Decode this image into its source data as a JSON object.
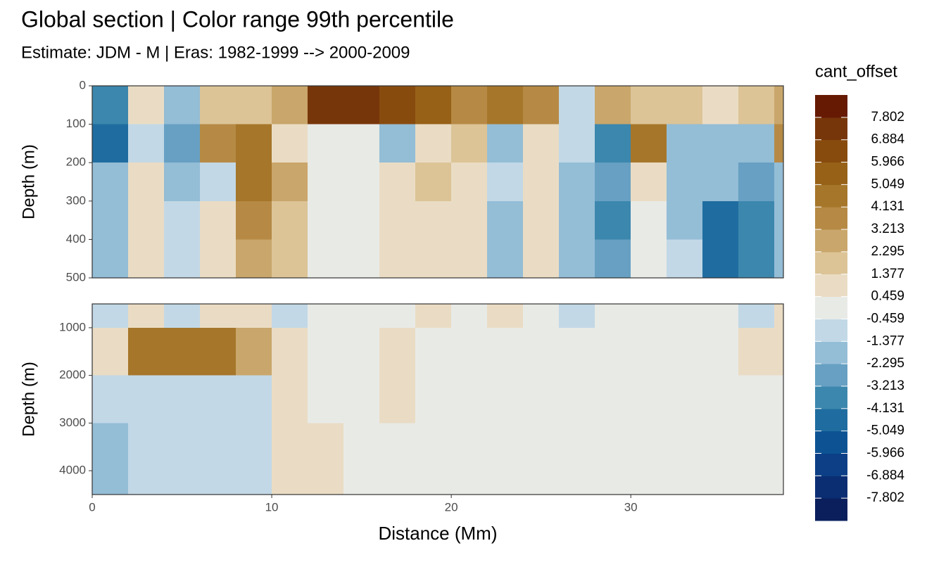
{
  "chart_data": {
    "type": "contour",
    "title": "Global section | Color range 99th percentile",
    "subtitle": "Estimate: JDM - M | Eras: 1982-1999 --> 2000-2009",
    "xlabel": "Distance (Mm)",
    "xlim": [
      0,
      38.5
    ],
    "xticks": [
      0,
      10,
      20,
      30
    ],
    "xbins": [
      0,
      2,
      4,
      6,
      8,
      10,
      12,
      14,
      16,
      18,
      20,
      22,
      24,
      26,
      28,
      30,
      32,
      34,
      36,
      38,
      38.5
    ],
    "y_reversed": true,
    "grid": true,
    "panels": [
      {
        "ylabel": "Depth (m)",
        "ylim": [
          0,
          500
        ],
        "yticks": [
          0,
          100,
          200,
          300,
          400,
          500
        ],
        "ybins": [
          0,
          100,
          200,
          300,
          400,
          500
        ],
        "values": [
          [
            -4,
            0.9,
            -1.5,
            1.8,
            1.8,
            2.5,
            7.5,
            7.5,
            6.5,
            5.5,
            4,
            4.5,
            3.5,
            -1,
            3,
            2,
            1.5,
            0.9,
            2,
            3
          ],
          [
            -5,
            -0.8,
            -2.5,
            3.5,
            5,
            1,
            0,
            0,
            -1.5,
            1,
            2,
            -1.5,
            1,
            -1,
            -3.5,
            5,
            -2,
            -1.5,
            -2,
            4
          ],
          [
            -1.5,
            0.5,
            -2,
            -1,
            5,
            2.5,
            0,
            0,
            0.8,
            1.5,
            1,
            -1,
            0.8,
            -1.5,
            -3,
            0.8,
            -1.5,
            -2,
            -3,
            -1.5
          ],
          [
            -1.5,
            0.6,
            -1,
            0.6,
            3.5,
            2,
            0,
            0,
            0.6,
            1,
            0.8,
            -1.5,
            0.8,
            -1.5,
            -4,
            0,
            -1.5,
            -5,
            -4,
            -1.5
          ],
          [
            -1.5,
            0.5,
            -1,
            0.6,
            3,
            1.5,
            0,
            0,
            0.5,
            0.8,
            0.6,
            -2,
            0.6,
            -2,
            -2.5,
            0,
            -1,
            -5,
            -4,
            -1.5
          ]
        ]
      },
      {
        "ylabel": "Depth (m)",
        "ylim": [
          500,
          4500
        ],
        "yticks": [
          1000,
          2000,
          3000,
          4000
        ],
        "ybins": [
          500,
          1000,
          2000,
          3000,
          4500
        ],
        "values": [
          [
            -0.6,
            0.6,
            -0.6,
            0.6,
            0.6,
            -1,
            0,
            0,
            0,
            0.6,
            0,
            0.6,
            0,
            -1,
            0,
            0,
            0,
            0,
            -0.6,
            0.6
          ],
          [
            0.6,
            5,
            5,
            5,
            3,
            0.6,
            0,
            0,
            0.6,
            0,
            0,
            0,
            0,
            0,
            0,
            0,
            0,
            0,
            0.6,
            0.6
          ],
          [
            -0.6,
            -0.6,
            -0.6,
            -0.6,
            -0.6,
            0.6,
            0,
            0,
            0.6,
            0,
            0,
            0,
            0,
            0,
            0,
            0,
            0,
            0,
            0,
            0
          ],
          [
            -2,
            -0.6,
            -0.6,
            -0.6,
            -0.6,
            0.6,
            0.6,
            0,
            0,
            0,
            0,
            0,
            0,
            0,
            0,
            0,
            0,
            0,
            0,
            0
          ]
        ]
      }
    ],
    "legend": {
      "title": "cant_offset",
      "breaks": [
        -7.802,
        -6.884,
        -5.966,
        -5.049,
        -4.131,
        -3.213,
        -2.295,
        -1.377,
        -0.459,
        0.459,
        1.377,
        2.295,
        3.213,
        4.131,
        5.049,
        5.966,
        6.884,
        7.802
      ],
      "colors": [
        "#0a1f5c",
        "#0b2e73",
        "#0c3f85",
        "#0d5394",
        "#1f6da0",
        "#3c87ad",
        "#67a0c2",
        "#94bdd6",
        "#c2d8e6",
        "#e8eae6",
        "#eadcc4",
        "#dcc497",
        "#c9a66b",
        "#b68a45",
        "#a6762a",
        "#976118",
        "#884b0e",
        "#77360a",
        "#661a04"
      ]
    }
  }
}
